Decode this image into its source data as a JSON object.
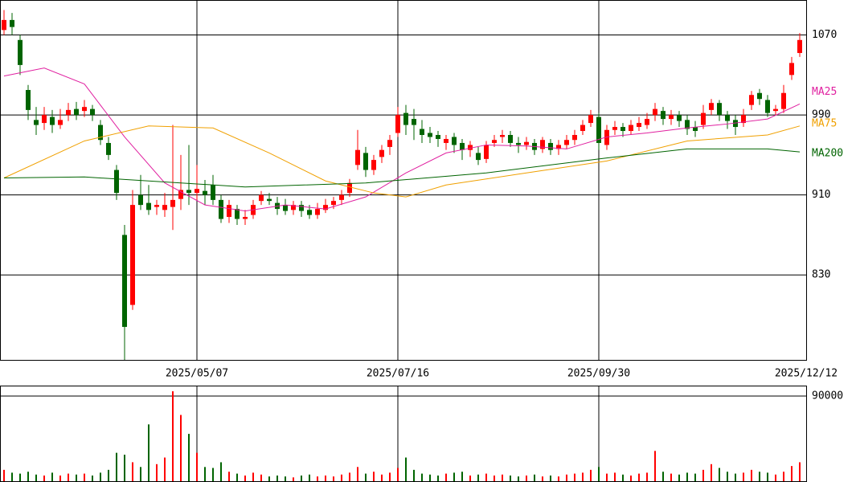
{
  "chart_data": [
    {
      "type": "candlestick",
      "up_color": "#ff0000",
      "down_color": "#006400",
      "open": [
        1075,
        1085,
        1065,
        1015,
        985,
        982,
        988,
        980,
        990,
        996,
        994,
        996,
        980,
        962,
        935,
        870,
        800,
        910,
        902,
        898,
        895,
        898,
        906,
        915,
        912,
        914,
        920,
        905,
        888,
        896,
        886,
        890,
        904,
        906,
        902,
        900,
        895,
        900,
        895,
        890,
        895,
        900,
        905,
        912,
        940,
        952,
        935,
        948,
        958,
        972,
        992,
        986,
        976,
        972,
        970,
        962,
        968,
        962,
        955,
        952,
        946,
        962,
        968,
        970,
        962,
        960,
        962,
        956,
        962,
        956,
        960,
        965,
        974,
        982,
        988,
        960,
        975,
        978,
        974,
        978,
        980,
        990,
        994,
        986,
        990,
        985,
        978,
        980,
        995,
        1002,
        990,
        985,
        982,
        1000,
        1012,
        1005,
        994,
        996,
        1030,
        1052
      ],
      "high": [
        1095,
        1092,
        1070,
        1020,
        998,
        998,
        995,
        996,
        1002,
        1003,
        1005,
        1000,
        985,
        968,
        940,
        880,
        915,
        930,
        920,
        905,
        912,
        980,
        950,
        960,
        940,
        925,
        930,
        910,
        905,
        900,
        895,
        905,
        914,
        912,
        908,
        906,
        904,
        904,
        900,
        902,
        906,
        908,
        915,
        926,
        975,
        958,
        950,
        960,
        970,
        998,
        1000,
        996,
        985,
        978,
        974,
        970,
        972,
        966,
        964,
        958,
        964,
        970,
        975,
        974,
        968,
        968,
        966,
        968,
        966,
        965,
        970,
        975,
        985,
        995,
        992,
        980,
        984,
        982,
        985,
        988,
        992,
        1002,
        998,
        995,
        994,
        990,
        984,
        1000,
        1006,
        1005,
        994,
        990,
        996,
        1014,
        1016,
        1010,
        1000,
        1020,
        1048,
        1072
      ],
      "low": [
        1070,
        1070,
        1030,
        985,
        970,
        975,
        972,
        976,
        984,
        985,
        988,
        984,
        960,
        945,
        905,
        745,
        795,
        895,
        890,
        890,
        888,
        875,
        895,
        900,
        905,
        900,
        900,
        882,
        882,
        880,
        880,
        886,
        900,
        900,
        890,
        890,
        890,
        888,
        886,
        886,
        892,
        896,
        900,
        908,
        935,
        928,
        930,
        942,
        950,
        968,
        970,
        965,
        962,
        962,
        958,
        955,
        952,
        945,
        948,
        940,
        942,
        958,
        962,
        958,
        952,
        955,
        950,
        952,
        950,
        950,
        956,
        960,
        970,
        978,
        955,
        955,
        970,
        968,
        970,
        974,
        976,
        984,
        980,
        980,
        978,
        970,
        968,
        976,
        990,
        984,
        976,
        970,
        978,
        995,
        1000,
        988,
        990,
        992,
        1025,
        1048
      ],
      "close": [
        1085,
        1078,
        1040,
        995,
        980,
        990,
        980,
        985,
        995,
        990,
        998,
        990,
        965,
        950,
        912,
        778,
        900,
        900,
        895,
        900,
        900,
        905,
        915,
        912,
        916,
        910,
        905,
        886,
        900,
        886,
        888,
        900,
        910,
        904,
        896,
        894,
        900,
        894,
        890,
        896,
        900,
        904,
        910,
        922,
        955,
        935,
        945,
        955,
        965,
        990,
        980,
        980,
        970,
        968,
        966,
        966,
        960,
        955,
        960,
        945,
        960,
        965,
        970,
        962,
        960,
        963,
        955,
        965,
        955,
        960,
        965,
        970,
        980,
        990,
        962,
        975,
        978,
        974,
        980,
        982,
        986,
        996,
        986,
        990,
        984,
        976,
        974,
        992,
        1002,
        990,
        984,
        978,
        990,
        1010,
        1006,
        992,
        996,
        1012,
        1042,
        1065
      ],
      "ylim": [
        745,
        1105
      ],
      "yticks": [
        830,
        910,
        990,
        1070
      ],
      "x_labels": [
        {
          "index": 24,
          "label": "2025/05/07"
        },
        {
          "index": 49,
          "label": "2025/07/16"
        },
        {
          "index": 74,
          "label": "2025/09/30"
        },
        {
          "index": 99.8,
          "label": "2025/12/12"
        }
      ],
      "series": [
        {
          "name": "MA25",
          "color": "#e020a0",
          "x": [
            0,
            5,
            10,
            15,
            20,
            25,
            30,
            35,
            40,
            45,
            50,
            55,
            60,
            65,
            70,
            75,
            80,
            85,
            90,
            95,
            99
          ],
          "values": [
            1029,
            1037,
            1021,
            968,
            922,
            900,
            894,
            900,
            896,
            908,
            932,
            952,
            960,
            959,
            956,
            968,
            972,
            977,
            981,
            986,
            1001
          ]
        },
        {
          "name": "MA75",
          "color": "#f0a000",
          "x": [
            0,
            10,
            18,
            26,
            33,
            40,
            46,
            50,
            55,
            65,
            75,
            85,
            95,
            99
          ],
          "values": [
            927,
            964,
            979,
            977,
            952,
            924,
            912,
            908,
            920,
            932,
            944,
            964,
            970,
            979
          ]
        },
        {
          "name": "MA200",
          "color": "#006400",
          "x": [
            0,
            10,
            30,
            45,
            60,
            75,
            85,
            95,
            99
          ],
          "values": [
            927,
            928,
            918,
            922,
            932,
            947,
            956,
            956,
            953
          ]
        }
      ]
    },
    {
      "type": "volume",
      "values": [
        12000,
        9000,
        8000,
        10000,
        7000,
        6000,
        9000,
        6000,
        8000,
        7000,
        8000,
        6000,
        9000,
        12000,
        30000,
        28000,
        20000,
        15000,
        60000,
        18000,
        25000,
        95000,
        70000,
        50000,
        30000,
        15000,
        14000,
        20000,
        10000,
        8000,
        6000,
        9000,
        7000,
        5000,
        6000,
        5000,
        4000,
        6000,
        7000,
        5000,
        6000,
        5000,
        7000,
        9000,
        15000,
        8000,
        10000,
        7000,
        9000,
        14000,
        25000,
        12000,
        8000,
        7000,
        6000,
        8000,
        9000,
        10000,
        6000,
        7000,
        8000,
        6000,
        7000,
        6000,
        5000,
        6000,
        7000,
        5000,
        6000,
        5000,
        7000,
        8000,
        9000,
        12000,
        15000,
        8000,
        9000,
        7000,
        6000,
        8000,
        9000,
        32000,
        10000,
        8000,
        7000,
        9000,
        8000,
        12000,
        18000,
        14000,
        10000,
        8000,
        9000,
        12000,
        10000,
        9000,
        7000,
        10000,
        16000,
        20000
      ],
      "ylim": [
        0,
        101000
      ],
      "yticks": [
        {
          "value": 90000,
          "label": "90000"
        }
      ]
    }
  ]
}
